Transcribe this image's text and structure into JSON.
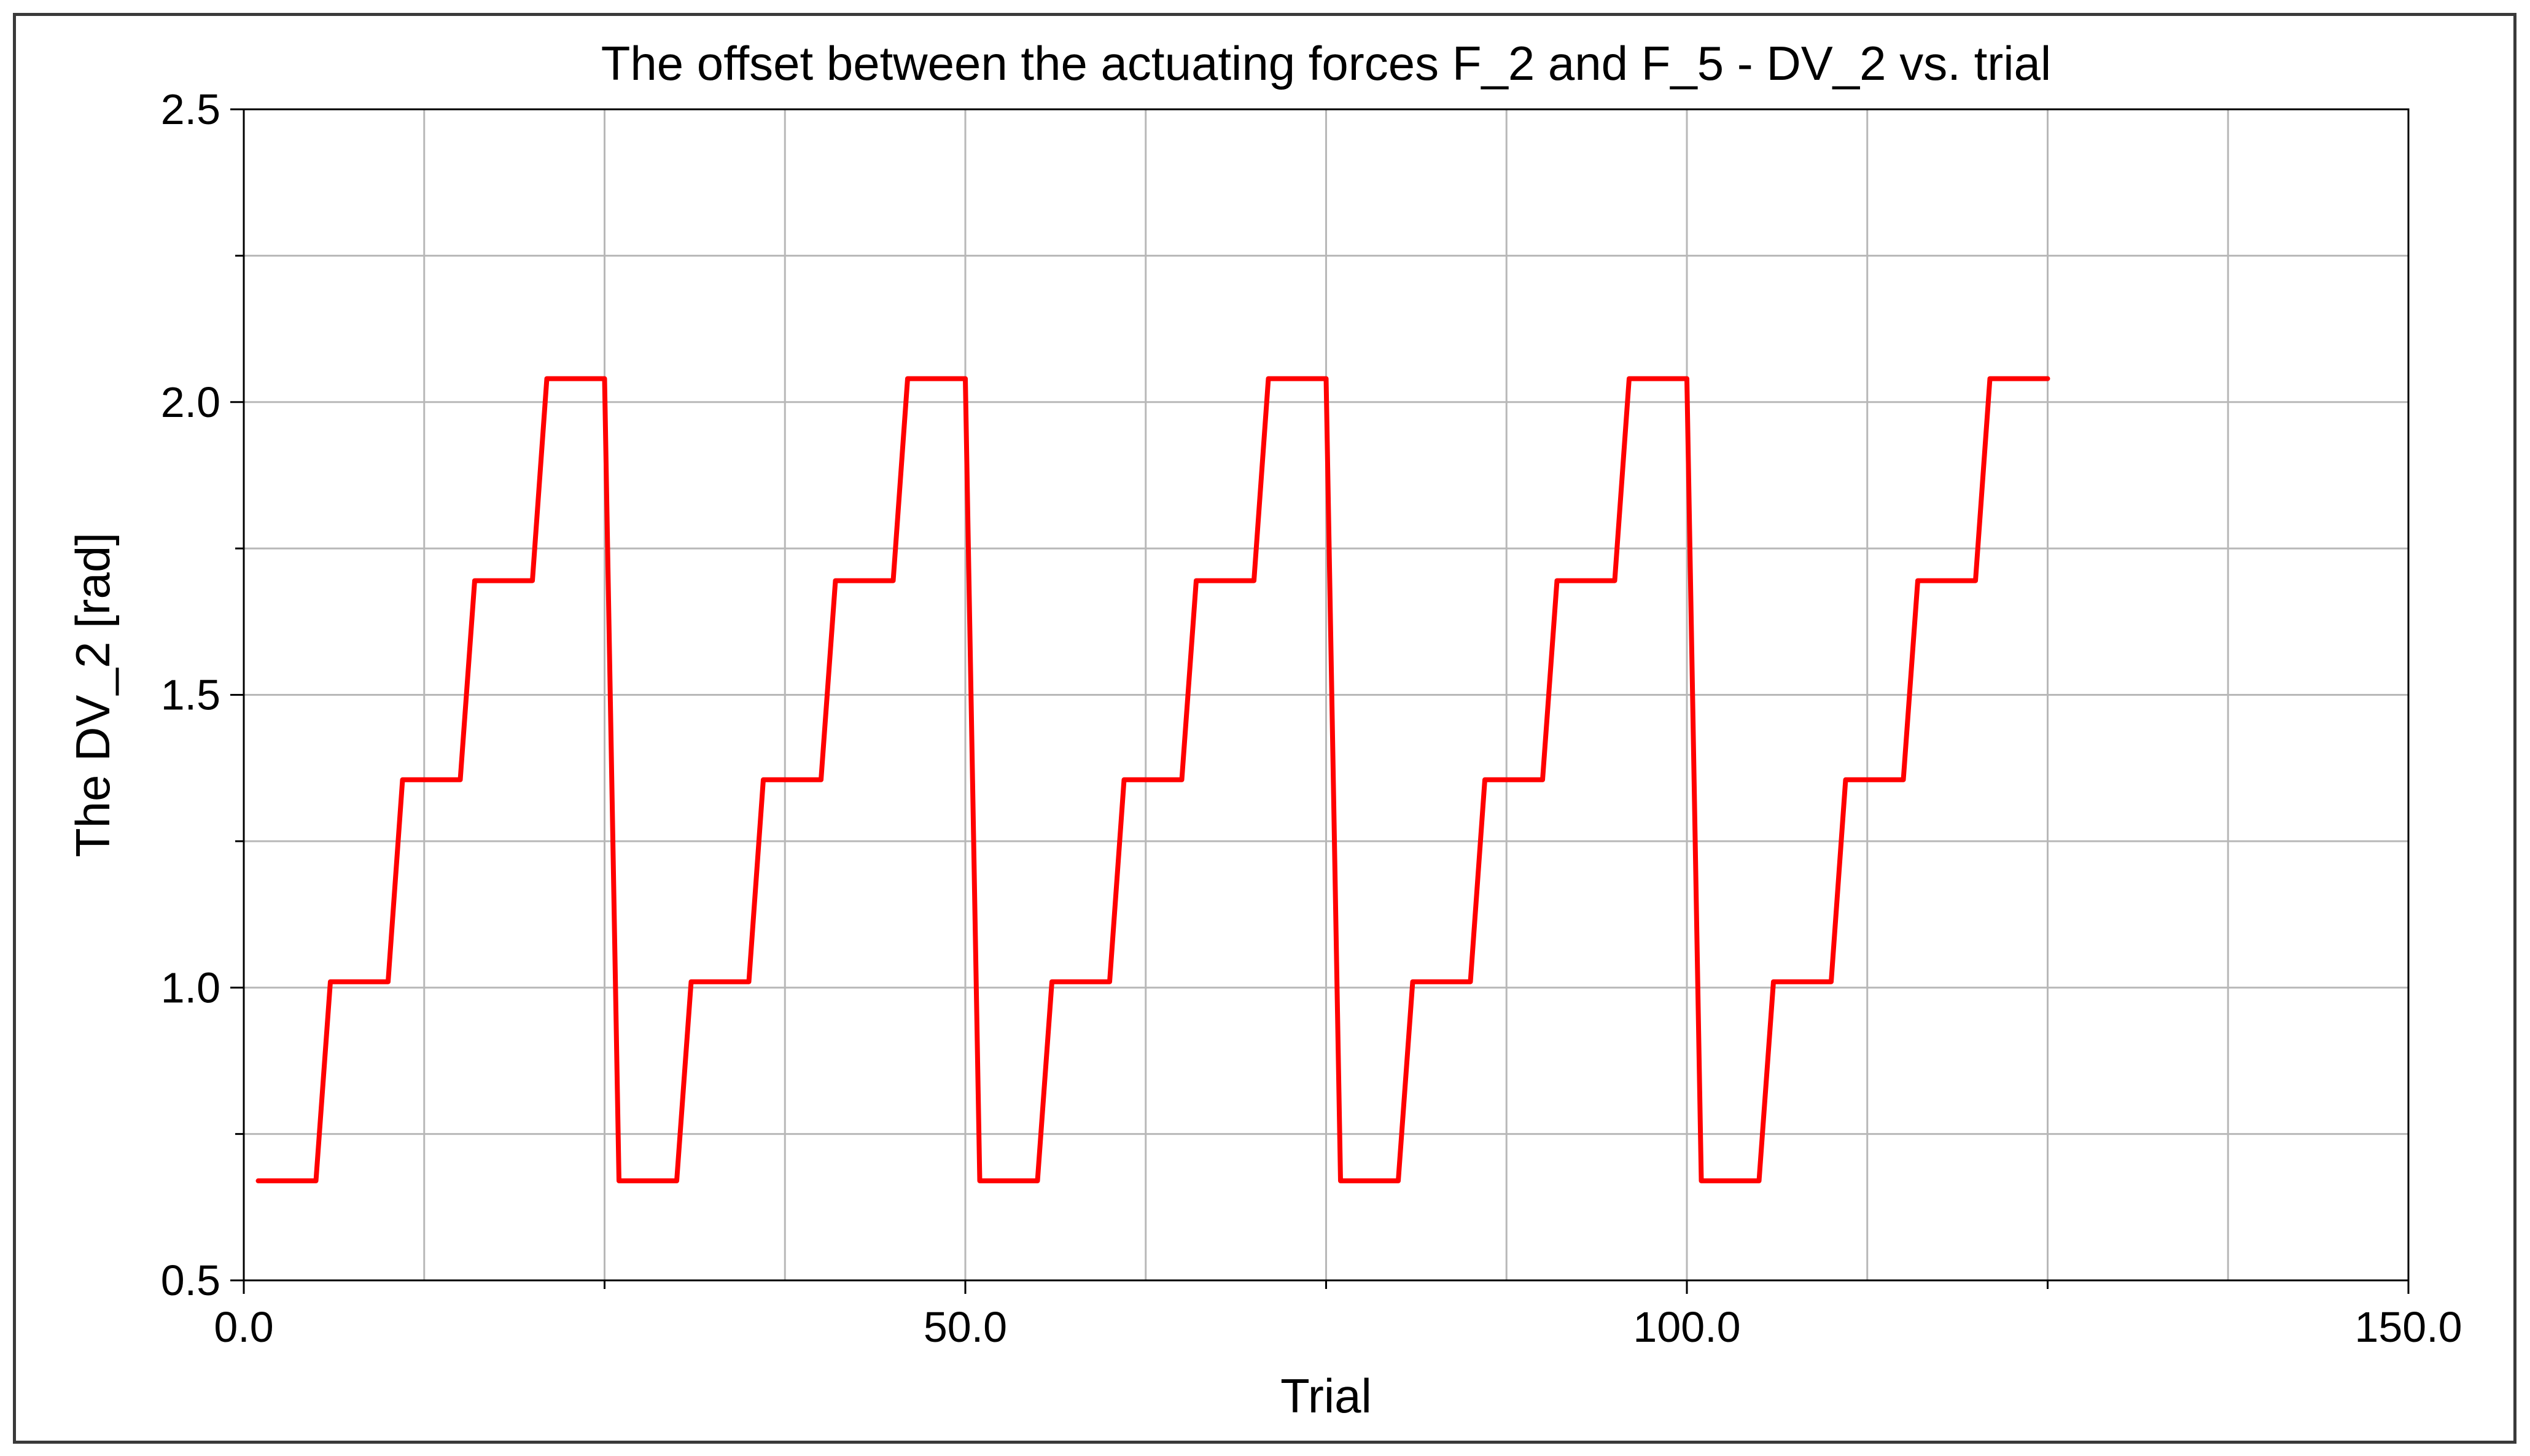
{
  "chart_data": {
    "type": "line",
    "title": "The offset between the actuating forces F_2 and F_5 - DV_2 vs. trial",
    "xlabel": "Trial",
    "ylabel": "The DV_2 [rad]",
    "xlim": [
      0,
      150
    ],
    "ylim": [
      0.5,
      2.5
    ],
    "x_tick_labels": [
      "0.0",
      "50.0",
      "100.0",
      "150.0"
    ],
    "y_tick_labels": [
      "0.5",
      "1.0",
      "1.5",
      "2.0",
      "2.5"
    ],
    "grid": true,
    "legend": false,
    "series": [
      {
        "color": "#ff0000",
        "x": [
          1,
          5,
          6,
          10,
          11,
          15,
          16,
          20,
          21,
          25,
          26,
          30,
          31,
          35,
          36,
          40,
          41,
          45,
          46,
          50,
          51,
          55,
          56,
          60,
          61,
          65,
          66,
          70,
          71,
          75,
          76,
          80,
          81,
          85,
          86,
          90,
          91,
          95,
          96,
          100,
          101,
          105,
          106,
          110,
          111,
          115,
          116,
          120,
          121,
          125
        ],
        "y": [
          0.67,
          0.67,
          1.01,
          1.01,
          1.355,
          1.355,
          1.695,
          1.695,
          2.04,
          2.04,
          0.67,
          0.67,
          1.01,
          1.01,
          1.355,
          1.355,
          1.695,
          1.695,
          2.04,
          2.04,
          0.67,
          0.67,
          1.01,
          1.01,
          1.355,
          1.355,
          1.695,
          1.695,
          2.04,
          2.04,
          0.67,
          0.67,
          1.01,
          1.01,
          1.355,
          1.355,
          1.695,
          1.695,
          2.04,
          2.04,
          0.67,
          0.67,
          1.01,
          1.01,
          1.355,
          1.355,
          1.695,
          1.695,
          2.04,
          2.04
        ]
      }
    ]
  }
}
